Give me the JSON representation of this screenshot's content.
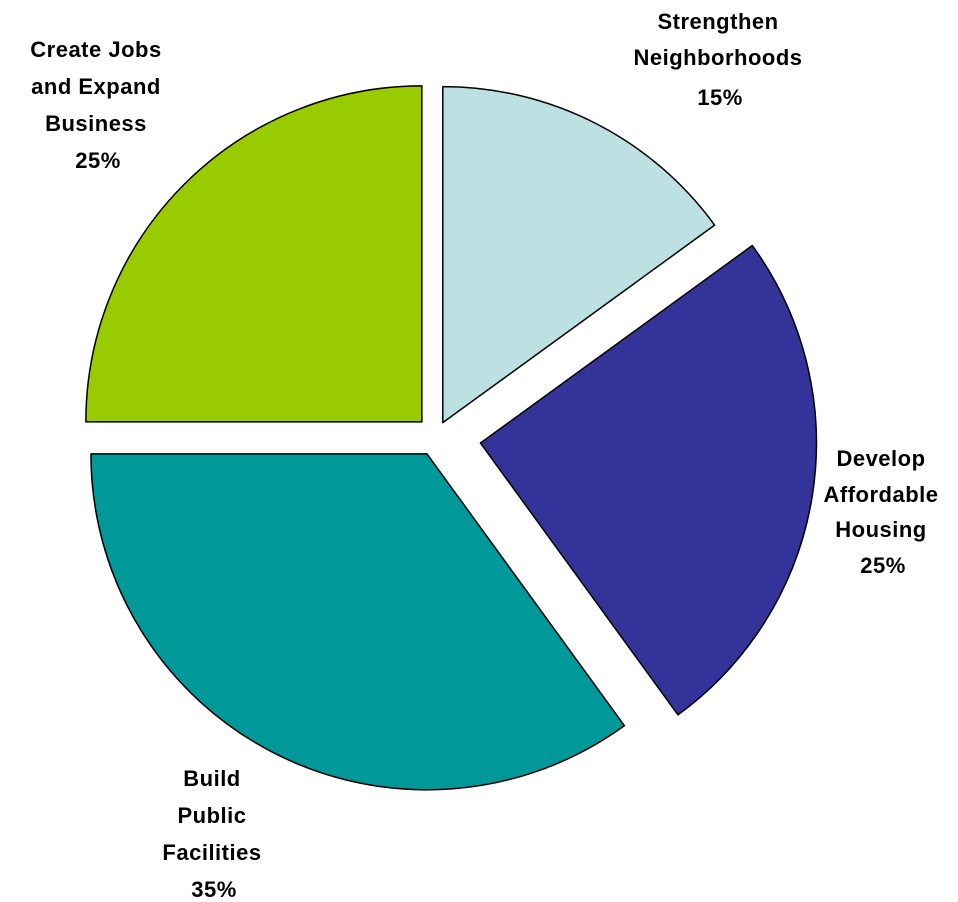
{
  "chart_data": {
    "type": "pie",
    "start_angle_deg": 0,
    "direction": "clockwise",
    "exploded": true,
    "legend": "none",
    "slices": [
      {
        "key": "neighborhoods",
        "label_lines": [
          "Strengthen",
          "Neighborhoods"
        ],
        "value": 15,
        "value_label": "15%",
        "color": "#BDE1E3"
      },
      {
        "key": "housing",
        "label_lines": [
          "Develop",
          "Affordable",
          "Housing"
        ],
        "value": 25,
        "value_label": "25%",
        "color": "#333399"
      },
      {
        "key": "facilities",
        "label_lines": [
          "Build",
          "Public",
          "Facilities"
        ],
        "value": 35,
        "value_label": "35%",
        "color": "#009999"
      },
      {
        "key": "jobs",
        "label_lines": [
          "Create Jobs",
          "and Expand",
          "Business"
        ],
        "value": 25,
        "value_label": "25%",
        "color": "#99CC00"
      }
    ]
  }
}
